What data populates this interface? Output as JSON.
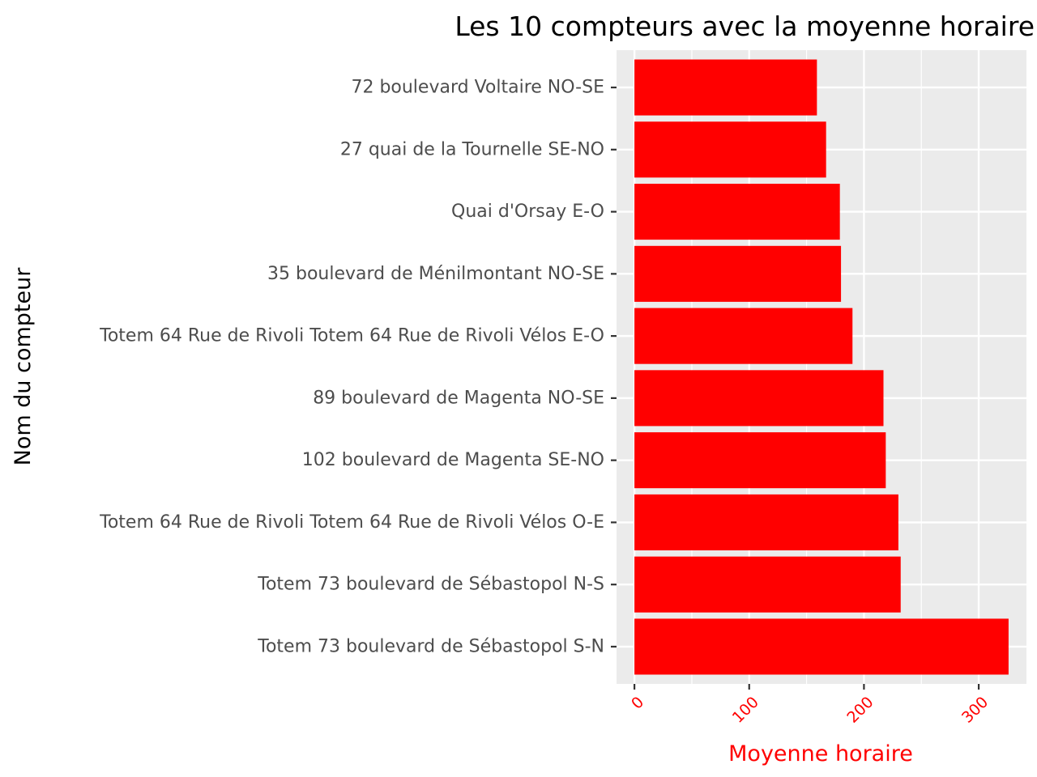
{
  "chart_data": {
    "type": "bar",
    "orientation": "horizontal",
    "title": "Les 10 compteurs avec la moyenne horaire",
    "xlabel": "Moyenne horaire",
    "ylabel": "Nom du compteur",
    "categories": [
      "Totem 73 boulevard de Sébastopol S-N",
      "Totem 73 boulevard de Sébastopol N-S",
      "Totem 64 Rue de Rivoli Totem 64 Rue de Rivoli Vélos O-E",
      "102 boulevard de Magenta SE-NO",
      "89 boulevard de Magenta NO-SE",
      "Totem 64 Rue de Rivoli Totem 64 Rue de Rivoli Vélos E-O",
      "35 boulevard de Ménilmontant NO-SE",
      "Quai d'Orsay E-O",
      "27 quai de la Tournelle SE-NO",
      "72 boulevard Voltaire NO-SE"
    ],
    "values": [
      326,
      232,
      230,
      219,
      217,
      190,
      180,
      179,
      167,
      159
    ],
    "xlim": [
      -15.6,
      341.6
    ],
    "x_ticks": [
      "0",
      "100",
      "200",
      "300"
    ],
    "bar_color": "#ff0000",
    "x_tick_label_color": "#ff0000",
    "x_title_color": "#ff0000",
    "panel_background": "#ebebeb",
    "grid": true,
    "legend": "none"
  }
}
